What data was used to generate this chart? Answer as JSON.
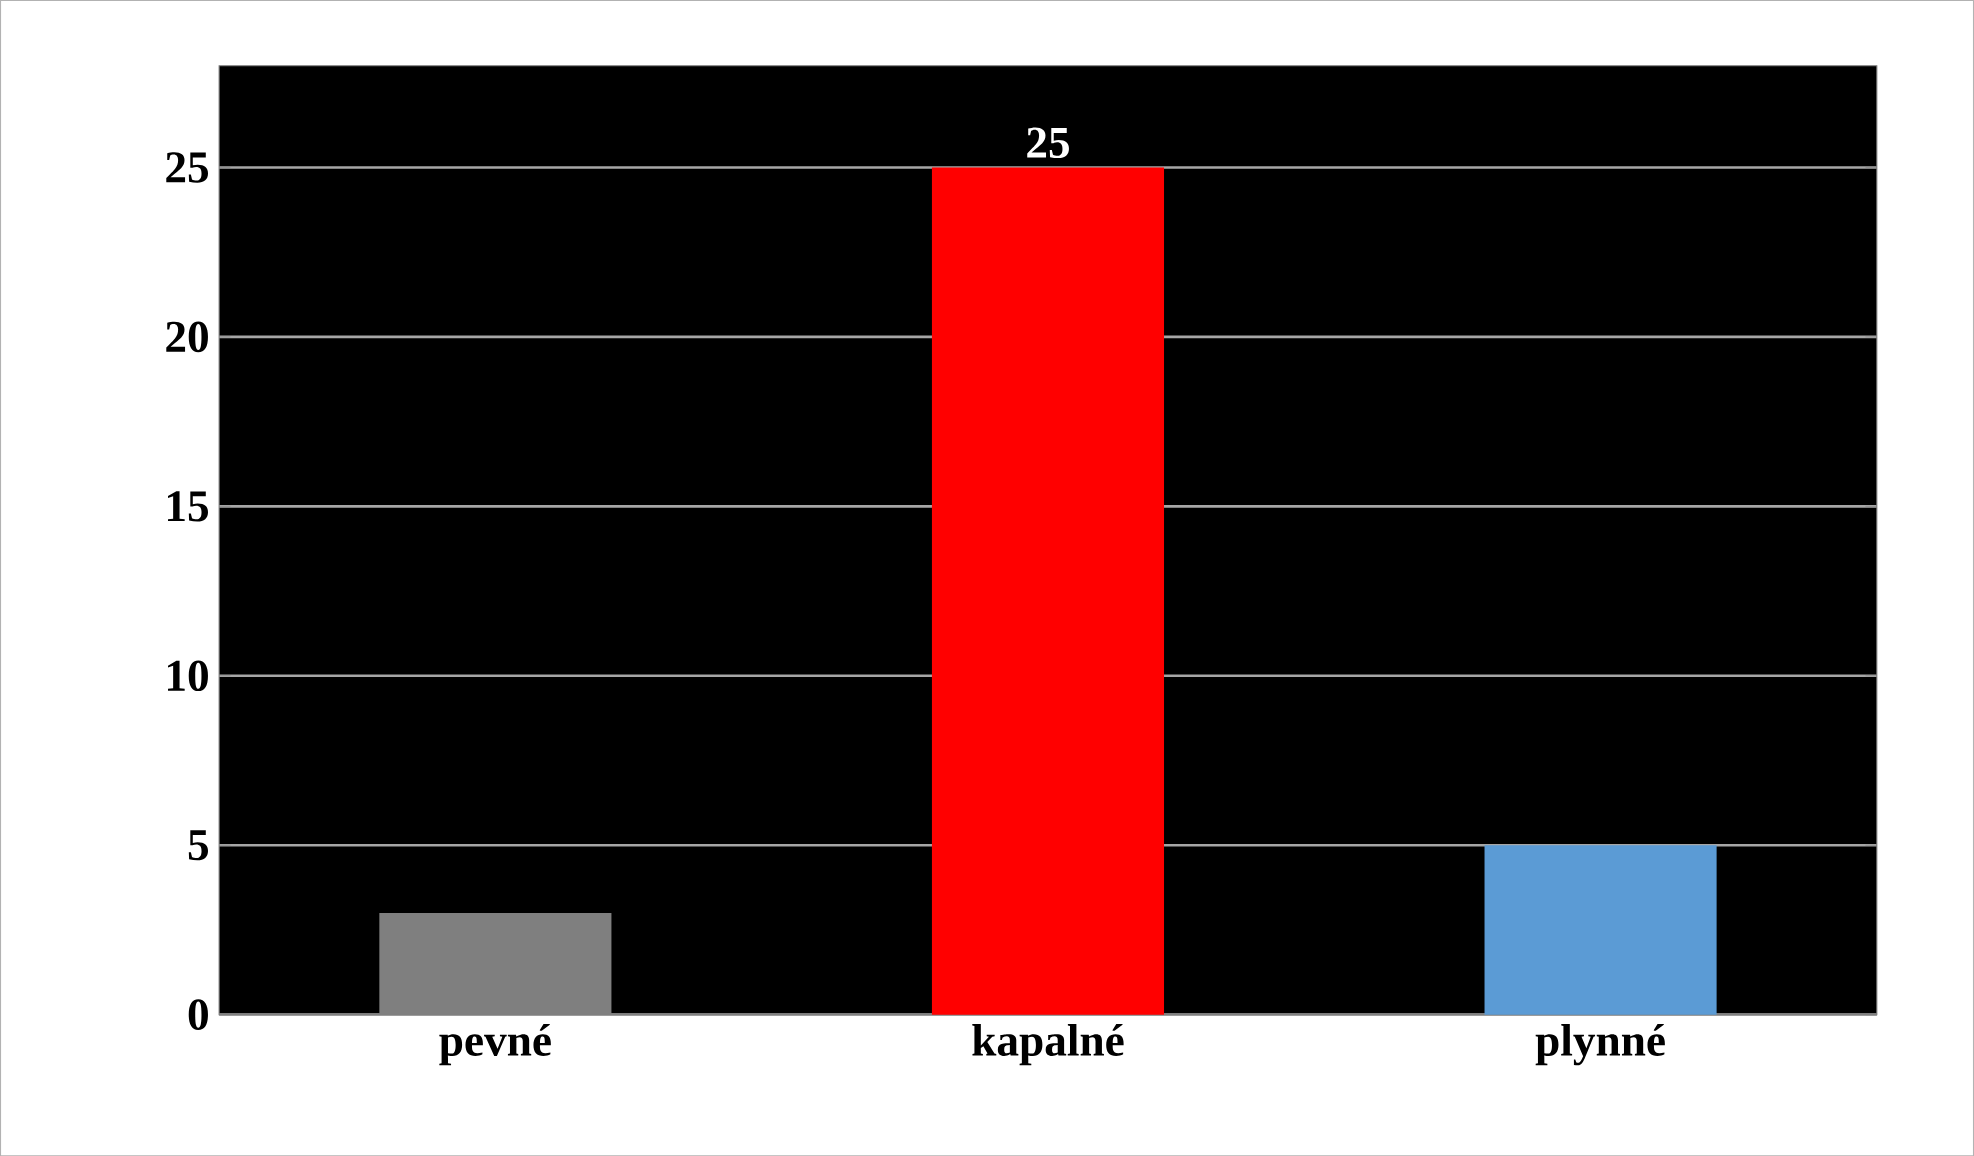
{
  "chart_data": {
    "type": "bar",
    "categories": [
      "pevné",
      "kapalné",
      "plynné"
    ],
    "values": [
      3,
      25,
      5
    ],
    "colors": [
      "#7f7f7f",
      "#ff0000",
      "#5b9bd5"
    ],
    "value_labels": [
      null,
      "25",
      null
    ],
    "ylim": [
      0,
      28
    ],
    "yticks": [
      0,
      5,
      10,
      15,
      20,
      25
    ],
    "grid": "y"
  }
}
